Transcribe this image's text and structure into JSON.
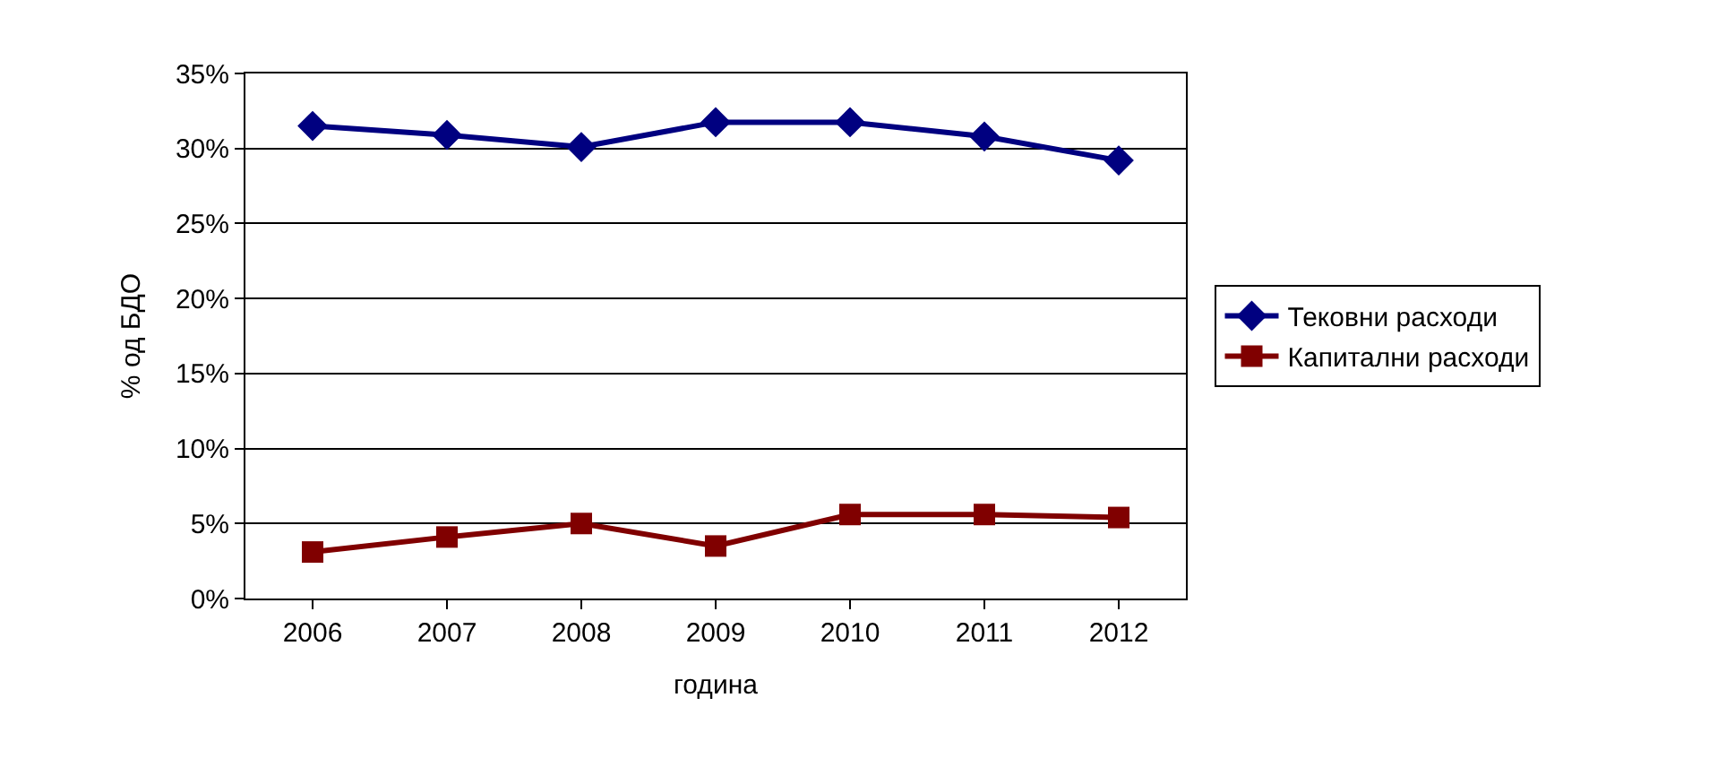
{
  "chart_data": {
    "type": "line",
    "xlabel": "година",
    "ylabel": "% од БДО",
    "categories": [
      "2006",
      "2007",
      "2008",
      "2009",
      "2010",
      "2011",
      "2012"
    ],
    "series": [
      {
        "name": "Тековни расходи",
        "color": "#000080",
        "marker": "diamond",
        "values": [
          31.5,
          30.9,
          30.1,
          31.75,
          31.75,
          30.8,
          29.2
        ]
      },
      {
        "name": "Капитални расходи",
        "color": "#800000",
        "marker": "square",
        "values": [
          3.1,
          4.1,
          5.0,
          3.5,
          5.6,
          5.6,
          5.4
        ]
      }
    ],
    "ylim": [
      0,
      35
    ],
    "yticks": [
      {
        "value": 0,
        "label": "0%"
      },
      {
        "value": 5,
        "label": "5%"
      },
      {
        "value": 10,
        "label": "10%"
      },
      {
        "value": 15,
        "label": "15%"
      },
      {
        "value": 20,
        "label": "20%"
      },
      {
        "value": 25,
        "label": "25%"
      },
      {
        "value": 30,
        "label": "30%"
      },
      {
        "value": 35,
        "label": "35%"
      }
    ],
    "grid": "y",
    "legend": "right",
    "line_style": "solid"
  }
}
